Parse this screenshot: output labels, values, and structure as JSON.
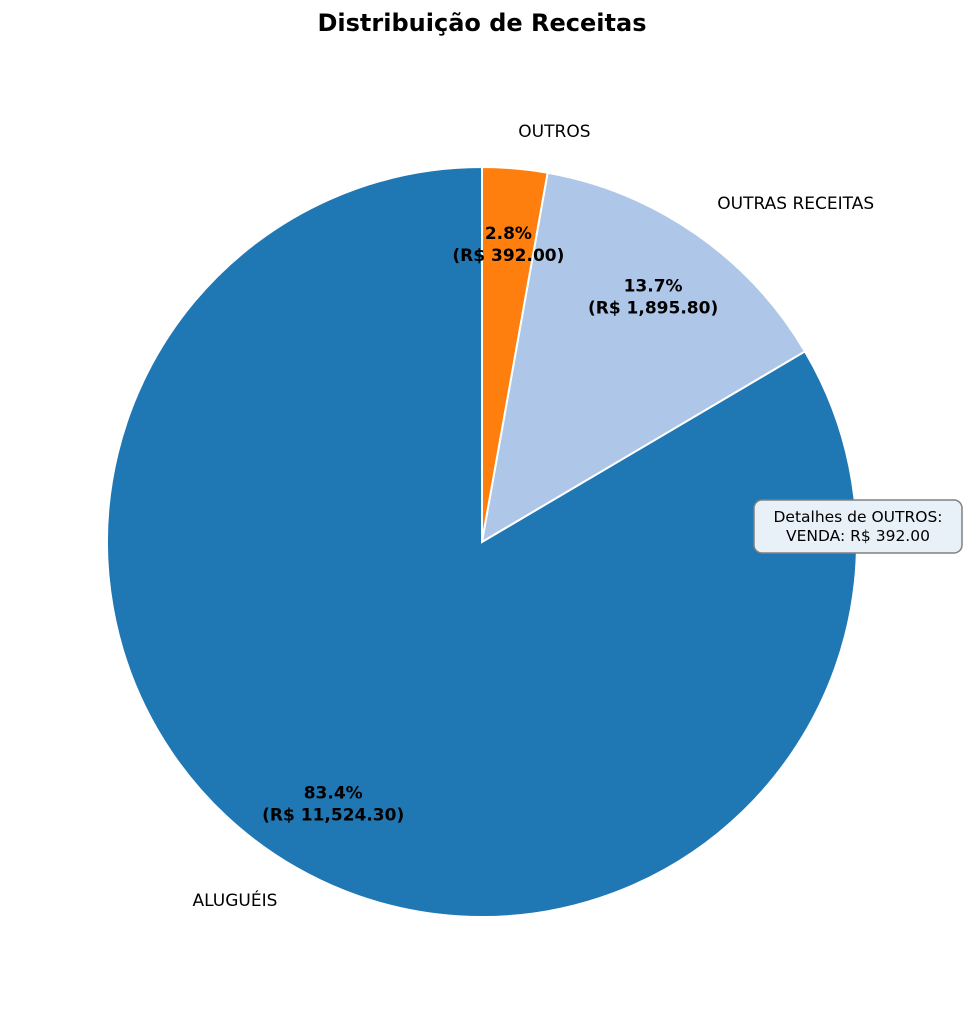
{
  "chart_data": {
    "type": "pie",
    "title": "Distribuição de Receitas",
    "slices": [
      {
        "label": "OUTROS",
        "percent": 2.8,
        "value_label": "(R$ 392.00)",
        "pct_label": "2.8%",
        "color": "#ff7f0e"
      },
      {
        "label": "OUTRAS RECEITAS",
        "percent": 13.7,
        "value_label": "(R$ 1,895.80)",
        "pct_label": "13.7%",
        "color": "#aec7e8"
      },
      {
        "label": "ALUGUÉIS",
        "percent": 83.4,
        "value_label": "(R$ 11,524.30)",
        "pct_label": "83.4%",
        "color": "#1f77b4"
      }
    ],
    "values": [
      392.0,
      1895.8,
      11524.3
    ],
    "start_angle": "top",
    "direction": "clockwise",
    "annotation": {
      "line1": "Detalhes de OUTROS:",
      "line2": "VENDA: R$ 392.00"
    }
  }
}
